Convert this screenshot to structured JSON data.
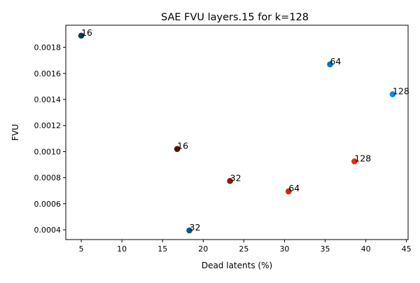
{
  "chart_data": {
    "type": "scatter",
    "title": "SAE FVU layers.15 for k=128",
    "xlabel": "Dead latents (%)",
    "ylabel": "FVU",
    "xlim": [
      3.1,
      45.2
    ],
    "ylim": [
      0.000325,
      0.00197
    ],
    "xticks": [
      5,
      10,
      15,
      20,
      25,
      30,
      35,
      40,
      45
    ],
    "xtick_labels": [
      "5",
      "10",
      "15",
      "20",
      "25",
      "30",
      "35",
      "40",
      "45"
    ],
    "yticks": [
      0.0004,
      0.0006,
      0.0008,
      0.001,
      0.0012,
      0.0014,
      0.0016,
      0.0018
    ],
    "ytick_labels": [
      "0.0004",
      "0.0006",
      "0.0008",
      "0.0010",
      "0.0012",
      "0.0014",
      "0.0016",
      "0.0018"
    ],
    "grid": false,
    "legend": "none",
    "points": [
      {
        "x": 5.0,
        "y": 0.00189,
        "label": "16",
        "color": "#0b3a52"
      },
      {
        "x": 18.3,
        "y": 0.000395,
        "label": "32",
        "color": "#0d5a85"
      },
      {
        "x": 35.6,
        "y": 0.00167,
        "label": "64",
        "color": "#0a78b8"
      },
      {
        "x": 43.3,
        "y": 0.00144,
        "label": "128",
        "color": "#0c8ee0"
      },
      {
        "x": 16.8,
        "y": 0.00102,
        "label": "16",
        "color": "#551200"
      },
      {
        "x": 23.3,
        "y": 0.000775,
        "label": "32",
        "color": "#8a1c0c"
      },
      {
        "x": 30.5,
        "y": 0.000695,
        "label": "64",
        "color": "#c42a10"
      },
      {
        "x": 38.6,
        "y": 0.000925,
        "label": "128",
        "color": "#f02a0a"
      }
    ]
  }
}
